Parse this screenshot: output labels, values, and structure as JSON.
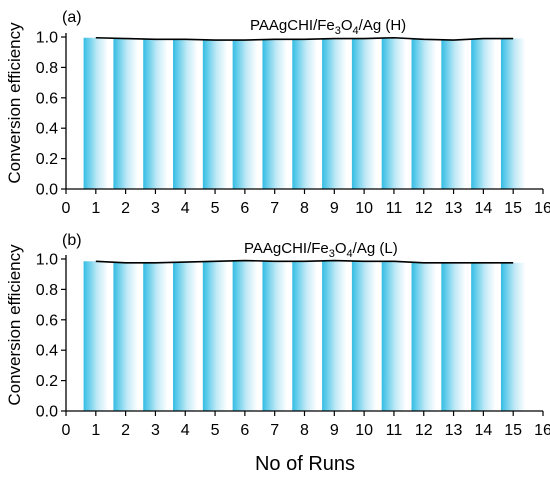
{
  "chart_data": {
    "type": "bar",
    "xlabel": "No of Runs",
    "xlim": [
      0,
      16
    ],
    "xticks": [
      "0",
      "1",
      "2",
      "3",
      "4",
      "5",
      "6",
      "7",
      "8",
      "9",
      "10",
      "11",
      "12",
      "13",
      "14",
      "15",
      "16"
    ],
    "colors": {
      "bar_edge": "#33bde4",
      "bar_center": "#ffffff",
      "line": "#000000"
    },
    "panels": [
      {
        "panel_label": "(a)",
        "series_label_prefix": "PAAgCHI/Fe",
        "series_label_sub1": "3",
        "series_label_mid": "O",
        "series_label_sub2": "4",
        "series_label_suffix": "/Ag (H)",
        "ylabel": "Conversion efficiency",
        "ylim": [
          0.0,
          1.0
        ],
        "yticks": [
          "0.0",
          "0.2",
          "0.4",
          "0.6",
          "0.8",
          "1.0"
        ],
        "x": [
          1,
          2,
          3,
          4,
          5,
          6,
          7,
          8,
          9,
          10,
          11,
          12,
          13,
          14,
          15
        ],
        "values": [
          0.995,
          0.99,
          0.985,
          0.985,
          0.98,
          0.98,
          0.985,
          0.985,
          0.99,
          0.99,
          0.995,
          0.985,
          0.98,
          0.99,
          0.99
        ]
      },
      {
        "panel_label": "(b)",
        "series_label_prefix": "PAAgCHI/Fe",
        "series_label_sub1": "3",
        "series_label_mid": "O",
        "series_label_sub2": "4",
        "series_label_suffix": "/Ag (L)",
        "ylabel": "Conversion efficiency",
        "ylim": [
          0.0,
          1.0
        ],
        "yticks": [
          "0.0",
          "0.2",
          "0.4",
          "0.6",
          "0.8",
          "1.0"
        ],
        "x": [
          1,
          2,
          3,
          4,
          5,
          6,
          7,
          8,
          9,
          10,
          11,
          12,
          13,
          14,
          15
        ],
        "values": [
          0.985,
          0.975,
          0.975,
          0.98,
          0.985,
          0.99,
          0.985,
          0.985,
          0.99,
          0.985,
          0.985,
          0.975,
          0.975,
          0.975,
          0.975
        ]
      }
    ]
  }
}
